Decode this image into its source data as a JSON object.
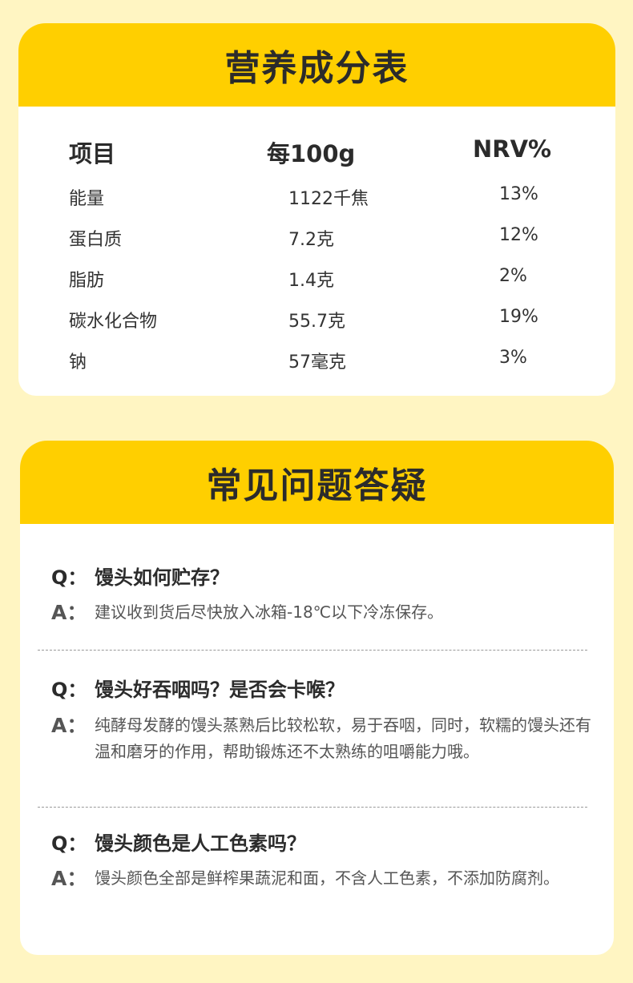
{
  "nutrition": {
    "title": "营养成分表",
    "headers": [
      "项目",
      "每100g",
      "NRV%"
    ],
    "rows": [
      [
        "能量",
        "1122千焦",
        "13%"
      ],
      [
        "蛋白质",
        "7.2克",
        "12%"
      ],
      [
        "脂肪",
        "1.4克",
        "2%"
      ],
      [
        "碳水化合物",
        "55.7克",
        "19%"
      ],
      [
        "钠",
        "57毫克",
        "3%"
      ]
    ]
  },
  "faq": {
    "title": "常见问题答疑",
    "q_label": "Q：",
    "a_label": "A：",
    "items": [
      {
        "q": "馒头如何贮存？",
        "a": "建议收到货后尽快放入冰箱-18℃以下冷冻保存。"
      },
      {
        "q": "馒头好吞咽吗？是否会卡喉？",
        "a": "纯酵母发酵的馒头蒸熟后比较松软，易于吞咽，同时，软糯的馒头还有温和磨牙的作用，帮助锻炼还不太熟练的咀嚼能力哦。"
      },
      {
        "q": "馒头颜色是人工色素吗？",
        "a": "馒头颜色全部是鲜榨果蔬泥和面，不含人工色素，不添加防腐剂。"
      }
    ]
  },
  "colors": {
    "accent": "#ffcf00",
    "background": "#fff5c2"
  }
}
